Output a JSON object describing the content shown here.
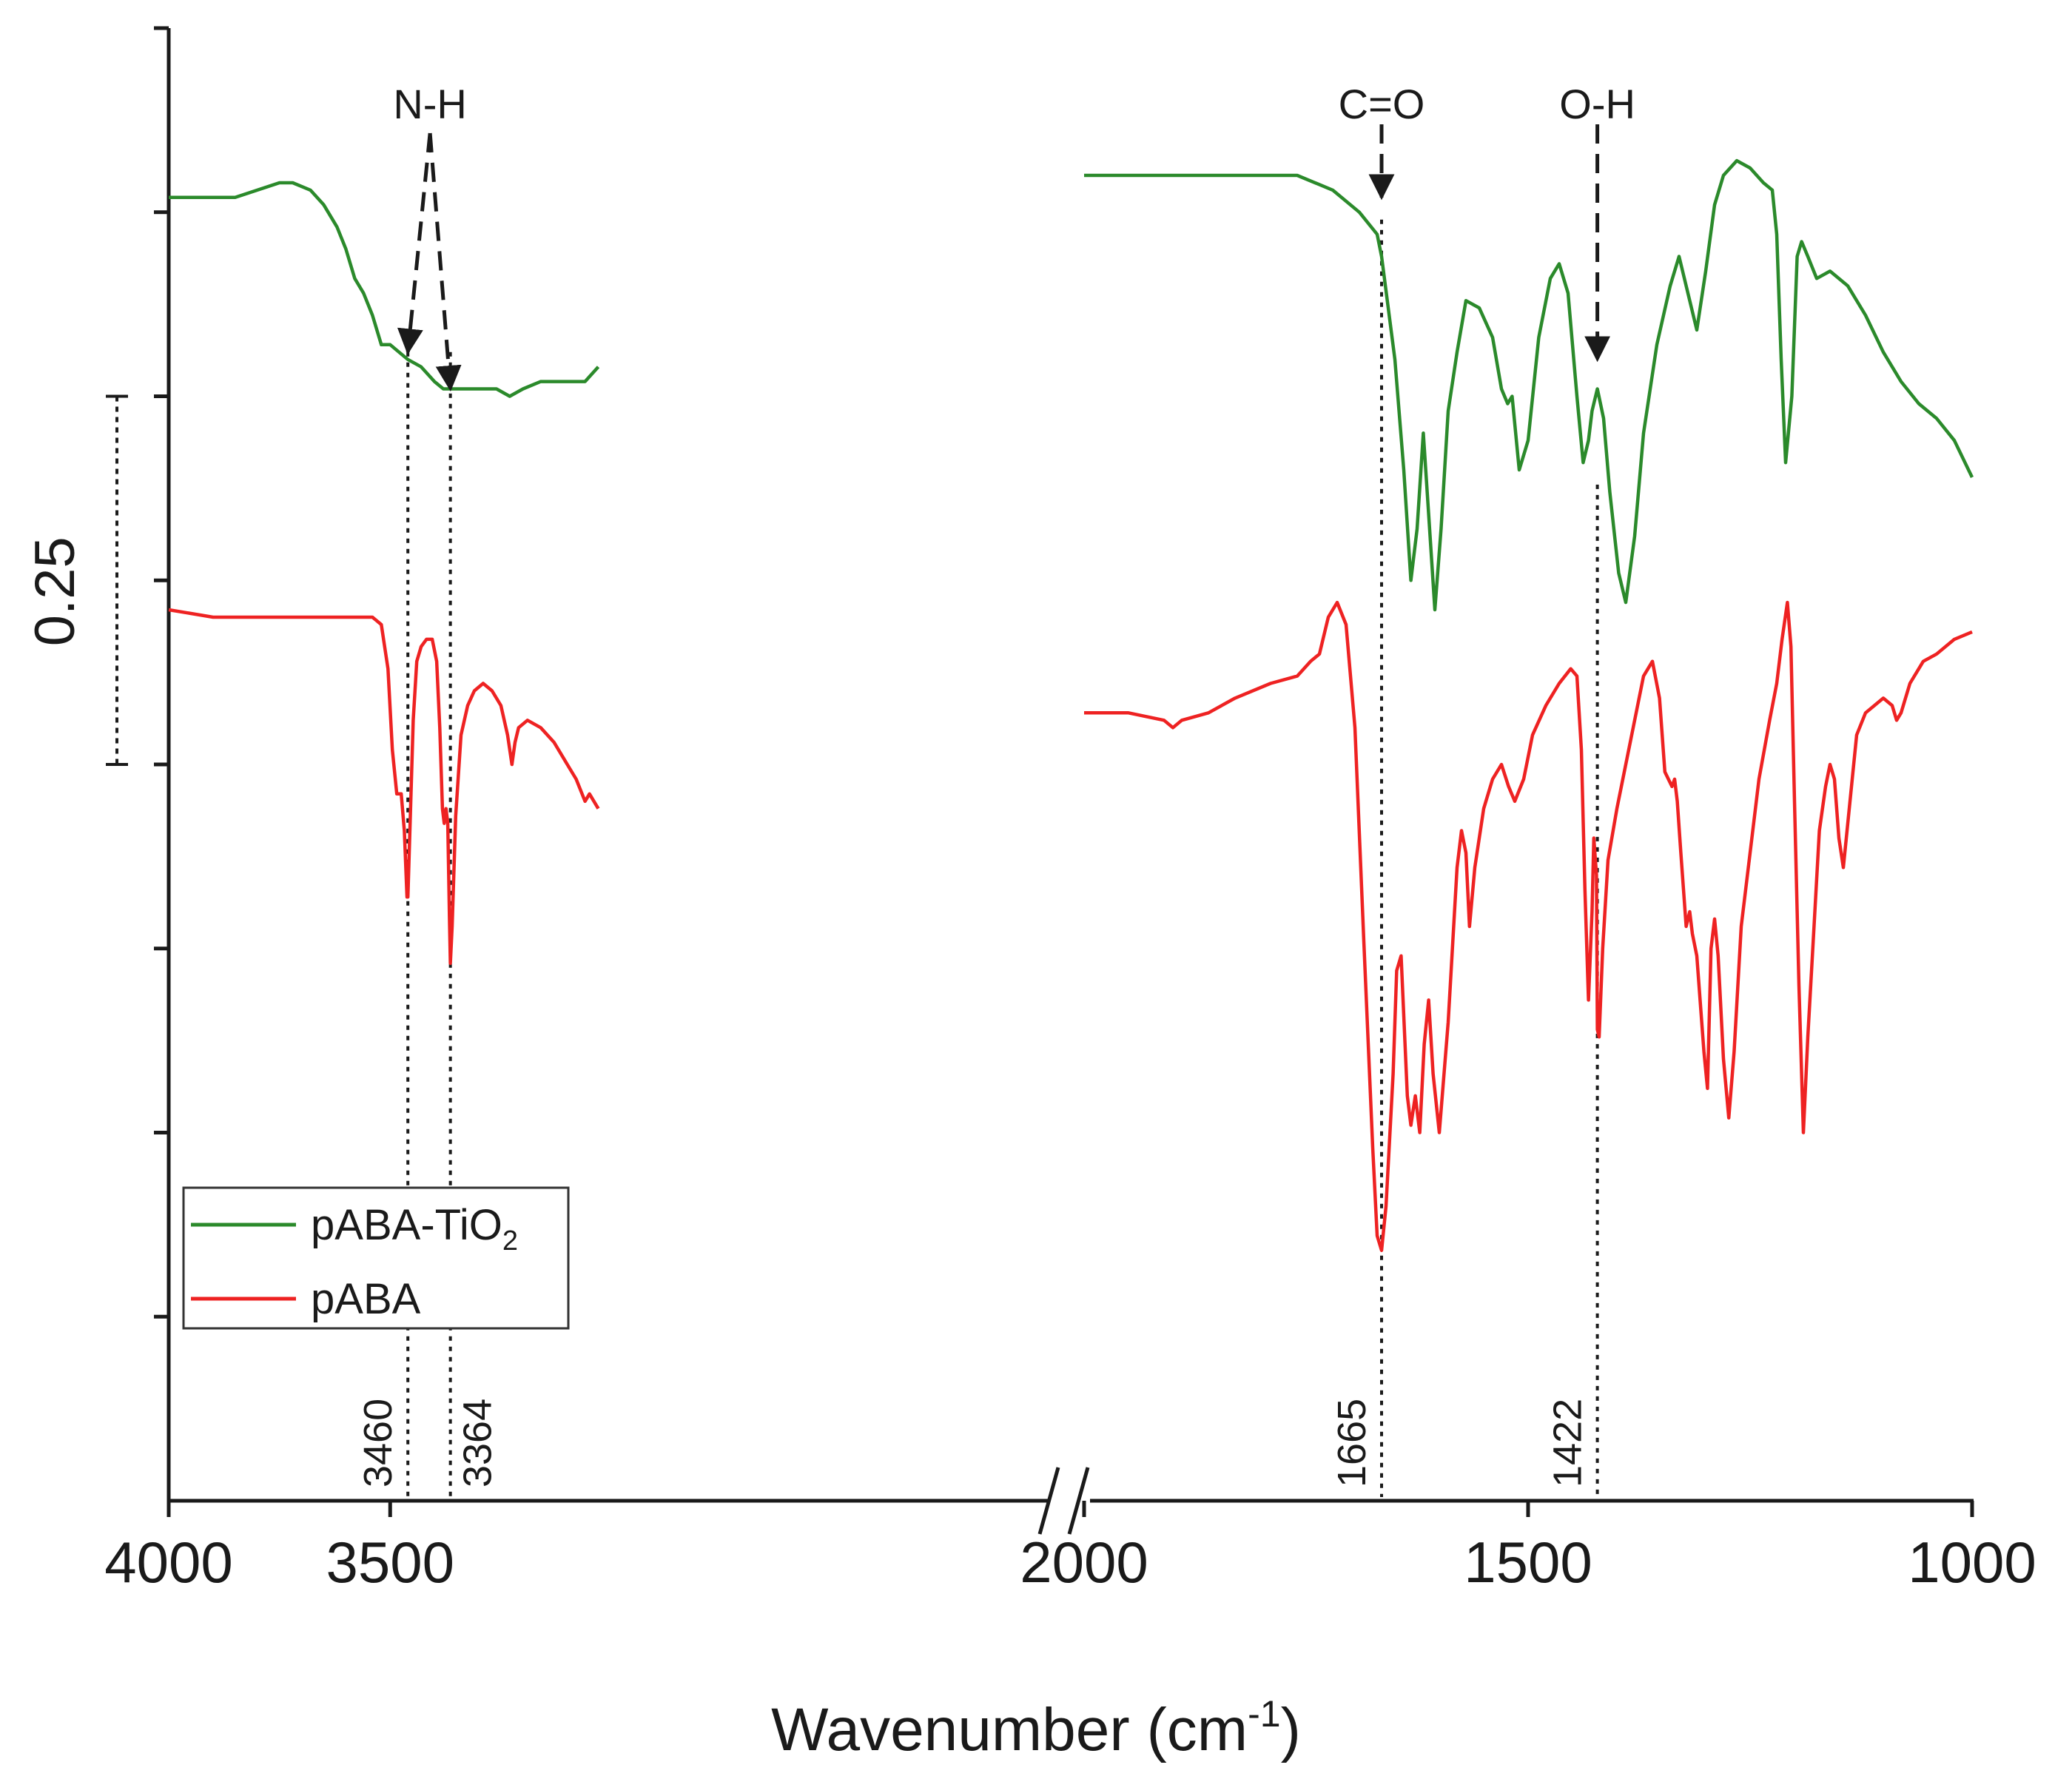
{
  "chart_data": {
    "type": "line",
    "title": "",
    "xlabel": "Wavenumber (cm",
    "xlabel_sup": "-1",
    "xlabel_end": ")",
    "ylabel": "",
    "x_reversed": true,
    "axis_break": true,
    "segments": [
      {
        "xlim": [
          4000,
          2000
        ]
      },
      {
        "xlim": [
          2000,
          1000
        ]
      }
    ],
    "ticks": [
      {
        "value": 4000,
        "label": "4000"
      },
      {
        "value": 3500,
        "label": "3500"
      },
      {
        "value": 2000,
        "label": "2000"
      },
      {
        "value": 1500,
        "label": "1500"
      },
      {
        "value": 1000,
        "label": "1000"
      }
    ],
    "ylim": [
      0,
      2.0
    ],
    "y_ticks": [
      0.25,
      0.5,
      0.75,
      1.0,
      1.25,
      1.5,
      1.75,
      2.0
    ],
    "scale_bar": {
      "label": "0.25",
      "from": 1.0,
      "to": 1.5
    },
    "series": [
      {
        "name": "pABA-TiO",
        "name_sub": "2",
        "color": "#2b8a2b",
        "points": [
          [
            4000,
            1.77
          ],
          [
            3950,
            1.77
          ],
          [
            3900,
            1.77
          ],
          [
            3850,
            1.77
          ],
          [
            3800,
            1.78
          ],
          [
            3750,
            1.79
          ],
          [
            3720,
            1.79
          ],
          [
            3680,
            1.78
          ],
          [
            3650,
            1.76
          ],
          [
            3620,
            1.73
          ],
          [
            3600,
            1.7
          ],
          [
            3580,
            1.66
          ],
          [
            3560,
            1.64
          ],
          [
            3540,
            1.61
          ],
          [
            3520,
            1.57
          ],
          [
            3500,
            1.57
          ],
          [
            3480,
            1.56
          ],
          [
            3460,
            1.55
          ],
          [
            3430,
            1.54
          ],
          [
            3400,
            1.52
          ],
          [
            3380,
            1.51
          ],
          [
            3364,
            1.51
          ],
          [
            3340,
            1.51
          ],
          [
            3300,
            1.51
          ],
          [
            3260,
            1.51
          ],
          [
            3230,
            1.5
          ],
          [
            3200,
            1.51
          ],
          [
            3160,
            1.52
          ],
          [
            3120,
            1.52
          ],
          [
            3090,
            1.52
          ],
          [
            3060,
            1.52
          ],
          [
            3030,
            1.54
          ],
          [
            2000,
            1.8
          ],
          [
            1900,
            1.8
          ],
          [
            1800,
            1.8
          ],
          [
            1760,
            1.8
          ],
          [
            1720,
            1.78
          ],
          [
            1690,
            1.75
          ],
          [
            1670,
            1.72
          ],
          [
            1665,
            1.69
          ],
          [
            1650,
            1.55
          ],
          [
            1640,
            1.4
          ],
          [
            1632,
            1.25
          ],
          [
            1625,
            1.32
          ],
          [
            1618,
            1.45
          ],
          [
            1612,
            1.34
          ],
          [
            1605,
            1.21
          ],
          [
            1598,
            1.32
          ],
          [
            1590,
            1.48
          ],
          [
            1580,
            1.56
          ],
          [
            1570,
            1.63
          ],
          [
            1555,
            1.62
          ],
          [
            1540,
            1.58
          ],
          [
            1530,
            1.51
          ],
          [
            1523,
            1.49
          ],
          [
            1518,
            1.5
          ],
          [
            1510,
            1.4
          ],
          [
            1500,
            1.44
          ],
          [
            1488,
            1.58
          ],
          [
            1475,
            1.66
          ],
          [
            1465,
            1.68
          ],
          [
            1455,
            1.64
          ],
          [
            1445,
            1.5
          ],
          [
            1438,
            1.41
          ],
          [
            1432,
            1.44
          ],
          [
            1428,
            1.48
          ],
          [
            1422,
            1.51
          ],
          [
            1415,
            1.47
          ],
          [
            1408,
            1.37
          ],
          [
            1398,
            1.26
          ],
          [
            1390,
            1.22
          ],
          [
            1380,
            1.31
          ],
          [
            1370,
            1.45
          ],
          [
            1355,
            1.57
          ],
          [
            1340,
            1.65
          ],
          [
            1330,
            1.69
          ],
          [
            1318,
            1.63
          ],
          [
            1310,
            1.59
          ],
          [
            1300,
            1.67
          ],
          [
            1290,
            1.76
          ],
          [
            1280,
            1.8
          ],
          [
            1265,
            1.82
          ],
          [
            1250,
            1.81
          ],
          [
            1235,
            1.79
          ],
          [
            1225,
            1.78
          ],
          [
            1220,
            1.72
          ],
          [
            1215,
            1.55
          ],
          [
            1210,
            1.41
          ],
          [
            1203,
            1.5
          ],
          [
            1197,
            1.69
          ],
          [
            1192,
            1.71
          ],
          [
            1185,
            1.69
          ],
          [
            1175,
            1.66
          ],
          [
            1160,
            1.67
          ],
          [
            1140,
            1.65
          ],
          [
            1120,
            1.61
          ],
          [
            1100,
            1.56
          ],
          [
            1080,
            1.52
          ],
          [
            1060,
            1.49
          ],
          [
            1040,
            1.47
          ],
          [
            1020,
            1.44
          ],
          [
            1000,
            1.39
          ]
        ]
      },
      {
        "name": "pABA",
        "color": "#ee2222",
        "points": [
          [
            4000,
            1.21
          ],
          [
            3900,
            1.2
          ],
          [
            3800,
            1.2
          ],
          [
            3700,
            1.2
          ],
          [
            3600,
            1.2
          ],
          [
            3540,
            1.2
          ],
          [
            3520,
            1.19
          ],
          [
            3505,
            1.13
          ],
          [
            3495,
            1.02
          ],
          [
            3485,
            0.96
          ],
          [
            3475,
            0.96
          ],
          [
            3468,
            0.91
          ],
          [
            3462,
            0.82
          ],
          [
            3460,
            0.82
          ],
          [
            3456,
            0.9
          ],
          [
            3448,
            1.06
          ],
          [
            3440,
            1.14
          ],
          [
            3430,
            1.16
          ],
          [
            3418,
            1.17
          ],
          [
            3405,
            1.17
          ],
          [
            3395,
            1.14
          ],
          [
            3388,
            1.05
          ],
          [
            3382,
            0.94
          ],
          [
            3378,
            0.92
          ],
          [
            3374,
            0.94
          ],
          [
            3370,
            0.92
          ],
          [
            3366,
            0.79
          ],
          [
            3364,
            0.73
          ],
          [
            3360,
            0.78
          ],
          [
            3352,
            0.93
          ],
          [
            3340,
            1.04
          ],
          [
            3325,
            1.08
          ],
          [
            3310,
            1.1
          ],
          [
            3290,
            1.11
          ],
          [
            3270,
            1.1
          ],
          [
            3250,
            1.08
          ],
          [
            3235,
            1.04
          ],
          [
            3225,
            1.0
          ],
          [
            3218,
            1.03
          ],
          [
            3210,
            1.05
          ],
          [
            3190,
            1.06
          ],
          [
            3160,
            1.05
          ],
          [
            3130,
            1.03
          ],
          [
            3100,
            1.0
          ],
          [
            3080,
            0.98
          ],
          [
            3060,
            0.95
          ],
          [
            3050,
            0.96
          ],
          [
            3030,
            0.94
          ],
          [
            2000,
            1.07
          ],
          [
            1950,
            1.07
          ],
          [
            1910,
            1.06
          ],
          [
            1900,
            1.05
          ],
          [
            1890,
            1.06
          ],
          [
            1860,
            1.07
          ],
          [
            1830,
            1.09
          ],
          [
            1790,
            1.11
          ],
          [
            1760,
            1.12
          ],
          [
            1745,
            1.14
          ],
          [
            1735,
            1.15
          ],
          [
            1725,
            1.2
          ],
          [
            1715,
            1.22
          ],
          [
            1705,
            1.19
          ],
          [
            1695,
            1.05
          ],
          [
            1685,
            0.76
          ],
          [
            1675,
            0.48
          ],
          [
            1670,
            0.36
          ],
          [
            1665,
            0.34
          ],
          [
            1660,
            0.4
          ],
          [
            1652,
            0.58
          ],
          [
            1648,
            0.72
          ],
          [
            1643,
            0.74
          ],
          [
            1636,
            0.55
          ],
          [
            1632,
            0.51
          ],
          [
            1627,
            0.55
          ],
          [
            1622,
            0.5
          ],
          [
            1617,
            0.62
          ],
          [
            1612,
            0.68
          ],
          [
            1607,
            0.58
          ],
          [
            1600,
            0.5
          ],
          [
            1590,
            0.65
          ],
          [
            1580,
            0.86
          ],
          [
            1575,
            0.91
          ],
          [
            1570,
            0.88
          ],
          [
            1566,
            0.78
          ],
          [
            1560,
            0.86
          ],
          [
            1550,
            0.94
          ],
          [
            1540,
            0.98
          ],
          [
            1530,
            1.0
          ],
          [
            1522,
            0.97
          ],
          [
            1515,
            0.95
          ],
          [
            1505,
            0.98
          ],
          [
            1495,
            1.04
          ],
          [
            1480,
            1.08
          ],
          [
            1465,
            1.11
          ],
          [
            1452,
            1.13
          ],
          [
            1445,
            1.12
          ],
          [
            1440,
            1.02
          ],
          [
            1436,
            0.83
          ],
          [
            1432,
            0.68
          ],
          [
            1428,
            0.8
          ],
          [
            1426,
            0.9
          ],
          [
            1423,
            0.85
          ],
          [
            1422,
            0.64
          ],
          [
            1420,
            0.63
          ],
          [
            1416,
            0.75
          ],
          [
            1410,
            0.87
          ],
          [
            1400,
            0.94
          ],
          [
            1390,
            1.0
          ],
          [
            1380,
            1.06
          ],
          [
            1370,
            1.12
          ],
          [
            1360,
            1.14
          ],
          [
            1352,
            1.09
          ],
          [
            1346,
            0.99
          ],
          [
            1342,
            0.98
          ],
          [
            1338,
            0.97
          ],
          [
            1335,
            0.98
          ],
          [
            1332,
            0.95
          ],
          [
            1328,
            0.88
          ],
          [
            1322,
            0.78
          ],
          [
            1318,
            0.8
          ],
          [
            1315,
            0.77
          ],
          [
            1310,
            0.74
          ],
          [
            1302,
            0.61
          ],
          [
            1298,
            0.56
          ],
          [
            1294,
            0.75
          ],
          [
            1290,
            0.79
          ],
          [
            1286,
            0.74
          ],
          [
            1280,
            0.6
          ],
          [
            1274,
            0.52
          ],
          [
            1268,
            0.61
          ],
          [
            1260,
            0.78
          ],
          [
            1250,
            0.88
          ],
          [
            1240,
            0.98
          ],
          [
            1228,
            1.06
          ],
          [
            1220,
            1.11
          ],
          [
            1214,
            1.17
          ],
          [
            1208,
            1.22
          ],
          [
            1204,
            1.16
          ],
          [
            1200,
            0.95
          ],
          [
            1195,
            0.7
          ],
          [
            1190,
            0.5
          ],
          [
            1185,
            0.63
          ],
          [
            1178,
            0.78
          ],
          [
            1172,
            0.91
          ],
          [
            1165,
            0.97
          ],
          [
            1160,
            1.0
          ],
          [
            1155,
            0.98
          ],
          [
            1150,
            0.9
          ],
          [
            1145,
            0.86
          ],
          [
            1140,
            0.92
          ],
          [
            1130,
            1.04
          ],
          [
            1120,
            1.07
          ],
          [
            1110,
            1.08
          ],
          [
            1100,
            1.09
          ],
          [
            1090,
            1.08
          ],
          [
            1085,
            1.06
          ],
          [
            1080,
            1.07
          ],
          [
            1070,
            1.11
          ],
          [
            1055,
            1.14
          ],
          [
            1040,
            1.15
          ],
          [
            1020,
            1.17
          ],
          [
            1000,
            1.18
          ]
        ]
      }
    ],
    "annotations": [
      {
        "text": "N-H",
        "role": "bond",
        "x": 3410
      },
      {
        "text": "C=O",
        "role": "bond",
        "x": 1665
      },
      {
        "text": "O-H",
        "role": "bond",
        "x": 1422
      }
    ],
    "peak_markers": [
      {
        "value": 3460,
        "label": "3460"
      },
      {
        "value": 3364,
        "label": "3364"
      },
      {
        "value": 1665,
        "label": "1665"
      },
      {
        "value": 1422,
        "label": "1422"
      }
    ],
    "arrows": [
      {
        "from_x": 3410,
        "to_x": 3460,
        "to_y": 1.56
      },
      {
        "from_x": 3410,
        "to_x": 3364,
        "to_y": 1.51
      },
      {
        "from_x": 1665,
        "to_x": 1665,
        "to_y": 1.77
      },
      {
        "from_x": 1422,
        "to_x": 1422,
        "to_y": 1.55
      }
    ],
    "legend": {
      "position": "bottom-left"
    }
  }
}
